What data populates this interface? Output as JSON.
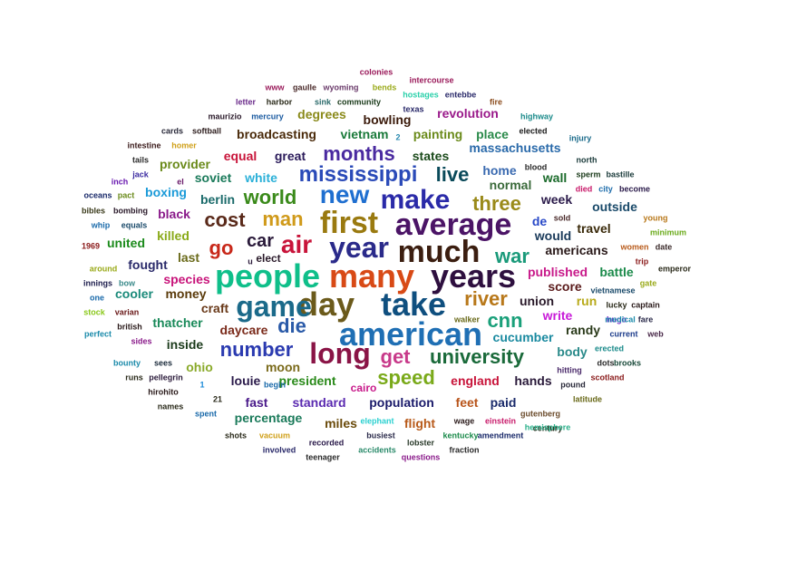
{
  "words": [
    {
      "t": "american",
      "c": "#1f6fb4"
    },
    {
      "t": "people",
      "c": "#0fbf8a"
    },
    {
      "t": "first",
      "c": "#9a7a10"
    },
    {
      "t": "many",
      "c": "#d84a16"
    },
    {
      "t": "average",
      "c": "#4b1466"
    },
    {
      "t": "years",
      "c": "#2e0f3f"
    },
    {
      "t": "much",
      "c": "#3b1e10"
    },
    {
      "t": "day",
      "c": "#6b5a1b"
    },
    {
      "t": "take",
      "c": "#0f4f7f"
    },
    {
      "t": "year",
      "c": "#2a2a8a"
    },
    {
      "t": "game",
      "c": "#1b6a8a"
    },
    {
      "t": "long",
      "c": "#8a1446"
    },
    {
      "t": "make",
      "c": "#2a2aa8"
    },
    {
      "t": "new",
      "c": "#1f6fd0"
    },
    {
      "t": "air",
      "c": "#c8143a"
    },
    {
      "t": "mississippi",
      "c": "#2a4ab8"
    },
    {
      "t": "university",
      "c": "#1a6a3a"
    },
    {
      "t": "months",
      "c": "#4a2aa0"
    },
    {
      "t": "cost",
      "c": "#5a2a1a"
    },
    {
      "t": "die",
      "c": "#2a5aa8"
    },
    {
      "t": "number",
      "c": "#2a3ab0"
    },
    {
      "t": "speed",
      "c": "#7aaa1a"
    },
    {
      "t": "world",
      "c": "#3a8a1a"
    },
    {
      "t": "live",
      "c": "#0a4a5a"
    },
    {
      "t": "man",
      "c": "#d09a1a"
    },
    {
      "t": "river",
      "c": "#b8781a"
    },
    {
      "t": "three",
      "c": "#9a8a1a"
    },
    {
      "t": "cnn",
      "c": "#1aa07a"
    },
    {
      "t": "get",
      "c": "#c83a8a"
    },
    {
      "t": "war",
      "c": "#1a9a7a"
    },
    {
      "t": "go",
      "c": "#c8281a"
    },
    {
      "t": "car",
      "c": "#2a1a3a"
    },
    {
      "t": "massachusetts",
      "c": "#2a6aaa"
    },
    {
      "t": "revolution",
      "c": "#9a1a8a"
    },
    {
      "t": "bowling",
      "c": "#3a1a0a"
    },
    {
      "t": "broadcasting",
      "c": "#4a2a0a"
    },
    {
      "t": "vietnam",
      "c": "#1a7a3a"
    },
    {
      "t": "painting",
      "c": "#6a8a1a"
    },
    {
      "t": "place",
      "c": "#2a8a4a"
    },
    {
      "t": "degrees",
      "c": "#8a8a1a"
    },
    {
      "t": "great",
      "c": "#2a1a5a"
    },
    {
      "t": "equal",
      "c": "#c8143a"
    },
    {
      "t": "states",
      "c": "#1a4a1a"
    },
    {
      "t": "provider",
      "c": "#6a8a1a"
    },
    {
      "t": "white",
      "c": "#2ab0d8"
    },
    {
      "t": "soviet",
      "c": "#1a7a5a"
    },
    {
      "t": "boxing",
      "c": "#1a9ad8"
    },
    {
      "t": "berlin",
      "c": "#1a6a6a"
    },
    {
      "t": "black",
      "c": "#8a1a8a"
    },
    {
      "t": "killed",
      "c": "#8aaa1a"
    },
    {
      "t": "united",
      "c": "#1a8a1a"
    },
    {
      "t": "last",
      "c": "#6a6a1a"
    },
    {
      "t": "fought",
      "c": "#2a2a6a"
    },
    {
      "t": "species",
      "c": "#c8147a"
    },
    {
      "t": "cooler",
      "c": "#1a8a7a"
    },
    {
      "t": "money",
      "c": "#5a3a0a"
    },
    {
      "t": "thatcher",
      "c": "#1a8a5a"
    },
    {
      "t": "craft",
      "c": "#6a3a1a"
    },
    {
      "t": "daycare",
      "c": "#7a2a1a"
    },
    {
      "t": "inside",
      "c": "#1a3a1a"
    },
    {
      "t": "ohio",
      "c": "#8aaa2a"
    },
    {
      "t": "moon",
      "c": "#7a6a1a"
    },
    {
      "t": "louie",
      "c": "#2a1a4a"
    },
    {
      "t": "president",
      "c": "#2a8a1a"
    },
    {
      "t": "fast",
      "c": "#4a1a8a"
    },
    {
      "t": "standard",
      "c": "#5a2ab0"
    },
    {
      "t": "percentage",
      "c": "#1a7a5a"
    },
    {
      "t": "miles",
      "c": "#6a4a0a"
    },
    {
      "t": "population",
      "c": "#1a1a6a"
    },
    {
      "t": "feet",
      "c": "#b8541a"
    },
    {
      "t": "paid",
      "c": "#1a2a6a"
    },
    {
      "t": "flight",
      "c": "#b85a1a"
    },
    {
      "t": "england",
      "c": "#c8143a"
    },
    {
      "t": "hands",
      "c": "#2a1a3a"
    },
    {
      "t": "home",
      "c": "#3a6ab0"
    },
    {
      "t": "normal",
      "c": "#3a6a3a"
    },
    {
      "t": "wall",
      "c": "#1a6a2a"
    },
    {
      "t": "week",
      "c": "#2a1a4a"
    },
    {
      "t": "outside",
      "c": "#1a4a6a"
    },
    {
      "t": "de",
      "c": "#2a4ac8"
    },
    {
      "t": "would",
      "c": "#1a3a5a"
    },
    {
      "t": "travel",
      "c": "#3a2a0a"
    },
    {
      "t": "americans",
      "c": "#2a1a1a"
    },
    {
      "t": "published",
      "c": "#c81a8a"
    },
    {
      "t": "battle",
      "c": "#1a8a4a"
    },
    {
      "t": "score",
      "c": "#5a1a1a"
    },
    {
      "t": "run",
      "c": "#b8aa1a"
    },
    {
      "t": "union",
      "c": "#2a1a2a"
    },
    {
      "t": "randy",
      "c": "#2a3a1a"
    },
    {
      "t": "write",
      "c": "#c81ad8"
    },
    {
      "t": "cucumber",
      "c": "#1a8aa0"
    },
    {
      "t": "body",
      "c": "#2a8a8a"
    },
    {
      "t": "colonies",
      "c": "#9a1a5a"
    },
    {
      "t": "intercourse",
      "c": "#9a1a5a"
    },
    {
      "t": "www",
      "c": "#9a1a5a"
    },
    {
      "t": "gaulle",
      "c": "#4a2a2a"
    },
    {
      "t": "wyoming",
      "c": "#6a3a6a"
    },
    {
      "t": "bends",
      "c": "#9aaa1a"
    },
    {
      "t": "hostages",
      "c": "#2ad0aa"
    },
    {
      "t": "entebbe",
      "c": "#2a2a6a"
    },
    {
      "t": "letter",
      "c": "#6a2a8a"
    },
    {
      "t": "harbor",
      "c": "#2a2a1a"
    },
    {
      "t": "sink",
      "c": "#2a6a6a"
    },
    {
      "t": "community",
      "c": "#1a3a1a"
    },
    {
      "t": "texas",
      "c": "#2a2a6a"
    },
    {
      "t": "fire",
      "c": "#8a4a1a"
    },
    {
      "t": "highway",
      "c": "#1a8a8a"
    },
    {
      "t": "maurizio",
      "c": "#2a1a2a"
    },
    {
      "t": "mercury",
      "c": "#1a5aa0"
    },
    {
      "t": "cards",
      "c": "#2a2a3a"
    },
    {
      "t": "softball",
      "c": "#2a1a1a"
    },
    {
      "t": "2",
      "c": "#2a8ab0"
    },
    {
      "t": "elected",
      "c": "#1a1a1a"
    },
    {
      "t": "injury",
      "c": "#1a6a8a"
    },
    {
      "t": "intestine",
      "c": "#3a1a1a"
    },
    {
      "t": "homer",
      "c": "#d0a01a"
    },
    {
      "t": "north",
      "c": "#1a3a3a"
    },
    {
      "t": "tails",
      "c": "#2a2a2a"
    },
    {
      "t": "el",
      "c": "#6a1a6a"
    },
    {
      "t": "blood",
      "c": "#2a2a2a"
    },
    {
      "t": "sperm",
      "c": "#1a3a1a"
    },
    {
      "t": "bastille",
      "c": "#1a3a3a"
    },
    {
      "t": "jack",
      "c": "#3a2aa0"
    },
    {
      "t": "died",
      "c": "#c81a6a"
    },
    {
      "t": "city",
      "c": "#1a6aaa"
    },
    {
      "t": "become",
      "c": "#2a1a4a"
    },
    {
      "t": "inch",
      "c": "#6a1ab0"
    },
    {
      "t": "pact",
      "c": "#6a8a1a"
    },
    {
      "t": "oceans",
      "c": "#1a2a6a"
    },
    {
      "t": "bibles",
      "c": "#3a3a1a"
    },
    {
      "t": "bombing",
      "c": "#2a1a2a"
    },
    {
      "t": "whip",
      "c": "#1a6aaa"
    },
    {
      "t": "equals",
      "c": "#1a4a6a"
    },
    {
      "t": "sold",
      "c": "#4a2a2a"
    },
    {
      "t": "young",
      "c": "#b8781a"
    },
    {
      "t": "minimum",
      "c": "#6aaa1a"
    },
    {
      "t": "1969",
      "c": "#8a1a1a"
    },
    {
      "t": "women",
      "c": "#b85a1a"
    },
    {
      "t": "date",
      "c": "#3a2a2a"
    },
    {
      "t": "around",
      "c": "#9aaa1a"
    },
    {
      "t": "trip",
      "c": "#8a1a1a"
    },
    {
      "t": "emperor",
      "c": "#2a2a1a"
    },
    {
      "t": "innings",
      "c": "#1a1a4a"
    },
    {
      "t": "bow",
      "c": "#3a8a8a"
    },
    {
      "t": "gate",
      "c": "#9aaa1a"
    },
    {
      "t": "one",
      "c": "#1a6aaa"
    },
    {
      "t": "vietnamese",
      "c": "#1a4a6a"
    },
    {
      "t": "lucky",
      "c": "#2a2a1a"
    },
    {
      "t": "captain",
      "c": "#2a1a1a"
    },
    {
      "t": "stock",
      "c": "#8ac81a"
    },
    {
      "t": "varian",
      "c": "#6a1a1a"
    },
    {
      "t": "hugo",
      "c": "#6a1ac8"
    },
    {
      "t": "fare",
      "c": "#2a2a4a"
    },
    {
      "t": "british",
      "c": "#2a1a1a"
    },
    {
      "t": "walker",
      "c": "#6a6a1a"
    },
    {
      "t": "medical",
      "c": "#1a8aaa"
    },
    {
      "t": "perfect",
      "c": "#1a8aaa"
    },
    {
      "t": "sides",
      "c": "#8a1a8a"
    },
    {
      "t": "current",
      "c": "#1a3a8a"
    },
    {
      "t": "web",
      "c": "#4a2a4a"
    },
    {
      "t": "u",
      "c": "#2a1a3a"
    },
    {
      "t": "elect",
      "c": "#2a1a2a"
    },
    {
      "t": "erected",
      "c": "#1a8a8a"
    },
    {
      "t": "bounty",
      "c": "#1a8aaa"
    },
    {
      "t": "sees",
      "c": "#1a2a3a"
    },
    {
      "t": "dots",
      "c": "#2a2a2a"
    },
    {
      "t": "brooks",
      "c": "#1a4a3a"
    },
    {
      "t": "hitting",
      "c": "#4a2a6a"
    },
    {
      "t": "runs",
      "c": "#2a2a1a"
    },
    {
      "t": "pellegrin",
      "c": "#2a1a3a"
    },
    {
      "t": "scotland",
      "c": "#8a1a1a"
    },
    {
      "t": "1",
      "c": "#1a8ad8"
    },
    {
      "t": "cairo",
      "c": "#c81a8a"
    },
    {
      "t": "pound",
      "c": "#2a2a3a"
    },
    {
      "t": "hirohito",
      "c": "#2a1a1a"
    },
    {
      "t": "21",
      "c": "#2a2a1a"
    },
    {
      "t": "begin",
      "c": "#1a6aaa"
    },
    {
      "t": "latitude",
      "c": "#6a6a1a"
    },
    {
      "t": "names",
      "c": "#2a2a1a"
    },
    {
      "t": "spent",
      "c": "#1a6aaa"
    },
    {
      "t": "elephant",
      "c": "#2ad0d0"
    },
    {
      "t": "wage",
      "c": "#2a1a1a"
    },
    {
      "t": "einstein",
      "c": "#c81a6a"
    },
    {
      "t": "gutenberg",
      "c": "#6a4a2a"
    },
    {
      "t": "century",
      "c": "#2a2a1a"
    },
    {
      "t": "shots",
      "c": "#2a2a1a"
    },
    {
      "t": "vacuum",
      "c": "#d0a01a"
    },
    {
      "t": "busiest",
      "c": "#2a2a4a"
    },
    {
      "t": "kentucky",
      "c": "#1a8a4a"
    },
    {
      "t": "amendment",
      "c": "#1a2a6a"
    },
    {
      "t": "hemisphere",
      "c": "#2ab08a"
    },
    {
      "t": "recorded",
      "c": "#2a1a4a"
    },
    {
      "t": "lobster",
      "c": "#2a3a2a"
    },
    {
      "t": "involved",
      "c": "#2a2a6a"
    },
    {
      "t": "accidents",
      "c": "#2a8a6a"
    },
    {
      "t": "fraction",
      "c": "#2a2a2a"
    },
    {
      "t": "teenager",
      "c": "#2a2a2a"
    },
    {
      "t": "questions",
      "c": "#8a1a8a"
    }
  ]
}
